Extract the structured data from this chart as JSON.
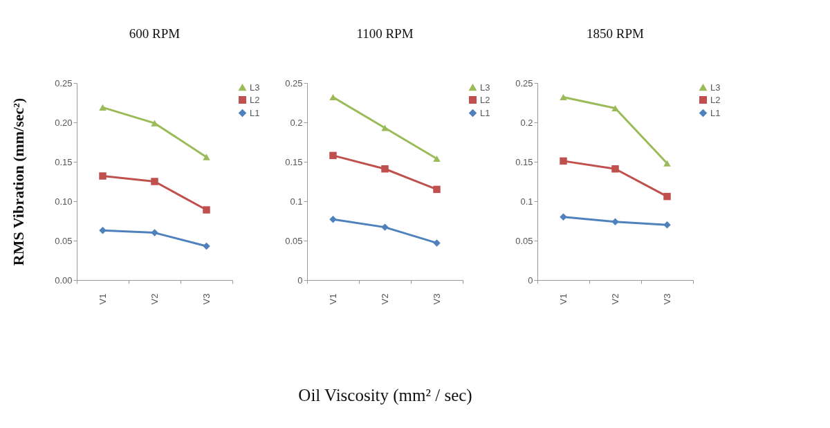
{
  "chart_data": [
    {
      "type": "line",
      "title": "600 RPM",
      "ylabel": "RMS Vibration (mm/sec²)",
      "categories": [
        "V1",
        "V2",
        "V3"
      ],
      "ylim": [
        0,
        0.25
      ],
      "yticks": [
        {
          "value": 0,
          "label": "0.00"
        },
        {
          "value": 0.05,
          "label": "0.05"
        },
        {
          "value": 0.1,
          "label": "0.10"
        },
        {
          "value": 0.15,
          "label": "0.15"
        },
        {
          "value": 0.2,
          "label": "0.20"
        },
        {
          "value": 0.25,
          "label": "0.25"
        }
      ],
      "legend": "right",
      "series": [
        {
          "name": "L3",
          "color": "#9bbb59",
          "marker": "triangle",
          "values": [
            0.219,
            0.199,
            0.156
          ]
        },
        {
          "name": "L2",
          "color": "#c0504d",
          "marker": "square",
          "values": [
            0.132,
            0.125,
            0.089
          ]
        },
        {
          "name": "L1",
          "color": "#4f81bd",
          "marker": "diamond",
          "values": [
            0.063,
            0.06,
            0.043
          ]
        }
      ]
    },
    {
      "type": "line",
      "title": "1100 RPM",
      "xlabel": "Oil Viscosity (mm² / sec)",
      "categories": [
        "V1",
        "V2",
        "V3"
      ],
      "ylim": [
        0,
        0.25
      ],
      "yticks": [
        0,
        0.05,
        0.1,
        0.15,
        0.2,
        0.25
      ],
      "legend": "right",
      "series": [
        {
          "name": "L3",
          "color": "#9bbb59",
          "marker": "triangle",
          "values": [
            0.232,
            0.193,
            0.154
          ]
        },
        {
          "name": "L2",
          "color": "#c0504d",
          "marker": "square",
          "values": [
            0.158,
            0.141,
            0.115
          ]
        },
        {
          "name": "L1",
          "color": "#4f81bd",
          "marker": "diamond",
          "values": [
            0.077,
            0.067,
            0.047
          ]
        }
      ]
    },
    {
      "type": "line",
      "title": "1850 RPM",
      "categories": [
        "V1",
        "V2",
        "V3"
      ],
      "ylim": [
        0,
        0.25
      ],
      "yticks": [
        0,
        0.05,
        0.1,
        0.15,
        0.2,
        0.25
      ],
      "legend": "right",
      "series": [
        {
          "name": "L3",
          "color": "#9bbb59",
          "marker": "triangle",
          "values": [
            0.232,
            0.218,
            0.148
          ]
        },
        {
          "name": "L2",
          "color": "#c0504d",
          "marker": "square",
          "values": [
            0.151,
            0.141,
            0.106
          ]
        },
        {
          "name": "L1",
          "color": "#4f81bd",
          "marker": "diamond",
          "values": [
            0.08,
            0.074,
            0.07
          ]
        }
      ]
    }
  ]
}
